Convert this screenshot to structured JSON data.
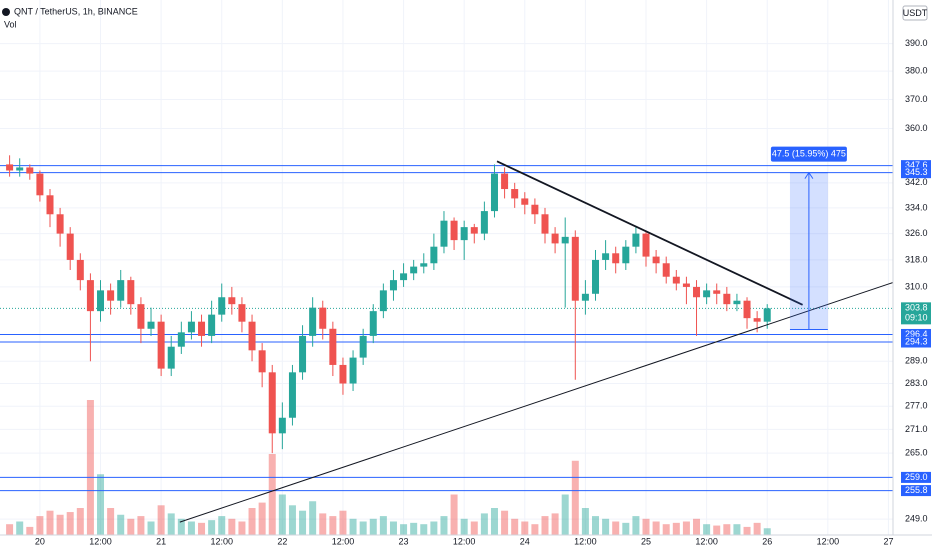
{
  "chart_data": {
    "type": "candlestick",
    "title": "QNT / TetherUS, 1h, BINANCE",
    "volume_label": "Vol",
    "currency": "USDT",
    "log_scale": true,
    "grid": true,
    "up_color": "#26a69a",
    "down_color": "#ef5350",
    "level_color": "#2962ff",
    "xlim": [
      -7.9,
      168.9
    ],
    "ylim": [
      245.3,
      406.4
    ],
    "xticks": [
      {
        "value": 0,
        "label": "20"
      },
      {
        "value": 12,
        "label": "12:00"
      },
      {
        "value": 24,
        "label": "21"
      },
      {
        "value": 36,
        "label": "12:00"
      },
      {
        "value": 48,
        "label": "22"
      },
      {
        "value": 60,
        "label": "12:00"
      },
      {
        "value": 72,
        "label": "23"
      },
      {
        "value": 84,
        "label": "12:00"
      },
      {
        "value": 96,
        "label": "24"
      },
      {
        "value": 108,
        "label": "12:00"
      },
      {
        "value": 120,
        "label": "25"
      },
      {
        "value": 132,
        "label": "12:00"
      },
      {
        "value": 144,
        "label": "26"
      },
      {
        "value": 156,
        "label": "12:00"
      },
      {
        "value": 168,
        "label": "27"
      }
    ],
    "yticks": [
      {
        "value": 390,
        "label": "390.0"
      },
      {
        "value": 380,
        "label": "380.0"
      },
      {
        "value": 370,
        "label": "370.0"
      },
      {
        "value": 360,
        "label": "360.0"
      },
      {
        "value": 342,
        "label": "342.0"
      },
      {
        "value": 334,
        "label": "334.0"
      },
      {
        "value": 326,
        "label": "326.0"
      },
      {
        "value": 318,
        "label": "318.0"
      },
      {
        "value": 310,
        "label": "310.0"
      },
      {
        "value": 289,
        "label": "289.0"
      },
      {
        "value": 283,
        "label": "283.0"
      },
      {
        "value": 277,
        "label": "277.0"
      },
      {
        "value": 271,
        "label": "271.0"
      },
      {
        "value": 265,
        "label": "265.0"
      },
      {
        "value": 249,
        "label": "249.0"
      }
    ],
    "x": [
      -6,
      -4,
      -2,
      0,
      2,
      4,
      6,
      8,
      10,
      12,
      14,
      16,
      18,
      20,
      22,
      24,
      26,
      28,
      30,
      32,
      34,
      36,
      38,
      40,
      42,
      44,
      46,
      48,
      50,
      52,
      54,
      56,
      58,
      60,
      62,
      64,
      66,
      68,
      70,
      72,
      74,
      76,
      78,
      80,
      82,
      84,
      86,
      88,
      90,
      92,
      94,
      96,
      98,
      100,
      102,
      104,
      106,
      108,
      110,
      112,
      114,
      116,
      118,
      120,
      122,
      124,
      126,
      128,
      130,
      132,
      134,
      136,
      138,
      140,
      142,
      144
    ],
    "open": [
      348,
      346,
      347,
      345,
      338,
      332,
      326,
      318,
      312,
      303,
      309,
      306,
      312,
      305,
      298,
      300,
      287,
      293,
      297,
      300,
      296,
      302,
      307,
      305,
      300,
      292,
      286,
      270,
      274,
      286,
      296,
      304,
      298,
      288,
      283,
      290,
      296,
      303,
      309,
      312,
      314,
      316,
      317,
      322,
      330,
      324,
      328,
      326,
      333,
      345,
      340,
      337,
      335,
      332,
      326,
      323,
      325,
      306,
      308,
      318,
      320,
      317,
      322,
      326,
      319,
      317,
      313,
      311,
      310,
      307,
      309,
      308,
      305,
      306,
      301,
      300
    ],
    "high": [
      351,
      350,
      348,
      346,
      340,
      334,
      328,
      320,
      314,
      312,
      311,
      315,
      313,
      307,
      304,
      302,
      296,
      300,
      303,
      302,
      306,
      311,
      310,
      307,
      302,
      294,
      288,
      278,
      288,
      299,
      307,
      306,
      300,
      290,
      292,
      298,
      305,
      311,
      315,
      317,
      318,
      320,
      326,
      333,
      331,
      330,
      329,
      336,
      348,
      347,
      342,
      339,
      337,
      334,
      328,
      331,
      327,
      312,
      321,
      324,
      322,
      324,
      328,
      327,
      321,
      319,
      315,
      313,
      312,
      311,
      311,
      310,
      308,
      307,
      303,
      305
    ],
    "low": [
      344,
      344,
      343,
      336,
      328,
      322,
      315,
      309,
      289,
      300,
      302,
      304,
      302,
      294,
      296,
      285,
      285,
      291,
      295,
      293,
      294,
      300,
      302,
      297,
      289,
      282,
      265,
      266,
      272,
      284,
      293,
      295,
      285,
      280,
      281,
      288,
      294,
      301,
      306,
      310,
      312,
      314,
      315,
      320,
      321,
      318,
      323,
      324,
      331,
      337,
      334,
      332,
      329,
      323,
      320,
      304,
      284,
      302,
      306,
      315,
      314,
      315,
      320,
      316,
      314,
      311,
      309,
      305,
      296,
      305,
      305,
      303,
      303,
      298,
      297,
      298
    ],
    "close": [
      346,
      347,
      345,
      338,
      332,
      326,
      318,
      312,
      303,
      309,
      306,
      312,
      305,
      298,
      300,
      287,
      293,
      297,
      300,
      296,
      302,
      307,
      305,
      300,
      292,
      286,
      270,
      274,
      286,
      296,
      304,
      298,
      288,
      283,
      290,
      296,
      303,
      309,
      312,
      314,
      316,
      317,
      322,
      330,
      324,
      328,
      326,
      333,
      345,
      340,
      337,
      335,
      332,
      326,
      323,
      325,
      306,
      308,
      318,
      320,
      317,
      322,
      326,
      319,
      317,
      313,
      311,
      310,
      307,
      309,
      308,
      305,
      306,
      301,
      300,
      303.8
    ],
    "volume": [
      8,
      10,
      6,
      14,
      18,
      15,
      17,
      20,
      100,
      45,
      20,
      15,
      12,
      14,
      10,
      22,
      16,
      12,
      10,
      9,
      11,
      14,
      12,
      10,
      20,
      24,
      60,
      30,
      22,
      18,
      25,
      16,
      14,
      18,
      12,
      10,
      12,
      14,
      10,
      8,
      9,
      8,
      10,
      14,
      30,
      12,
      10,
      16,
      20,
      18,
      12,
      10,
      8,
      14,
      16,
      30,
      55,
      20,
      14,
      12,
      10,
      9,
      14,
      12,
      10,
      8,
      9,
      10,
      12,
      8,
      7,
      8,
      8,
      6,
      9,
      5
    ],
    "levels": [
      {
        "value": 347.6,
        "label": "347.6"
      },
      {
        "value": 345.3,
        "label": "345.3"
      },
      {
        "value": 296.4,
        "label": "296.4"
      },
      {
        "value": 294.3,
        "label": "294.3"
      },
      {
        "value": 259,
        "label": "259.0"
      },
      {
        "value": 255.8,
        "label": "255.8"
      }
    ],
    "current_price": {
      "value": 303.8,
      "label": "303.8",
      "countdown": "09:10"
    },
    "trendlines": [
      {
        "x": [
          90.5,
          151
        ],
        "y": [
          349,
          304.8
        ]
      },
      {
        "x": [
          27.7,
          168.9
        ],
        "y": [
          248.3,
          311.3
        ]
      }
    ],
    "measure": {
      "x": [
        148.5,
        156
      ],
      "from": 297.8,
      "to": 345.3,
      "label": "47.5 (15.95%) 475"
    }
  }
}
